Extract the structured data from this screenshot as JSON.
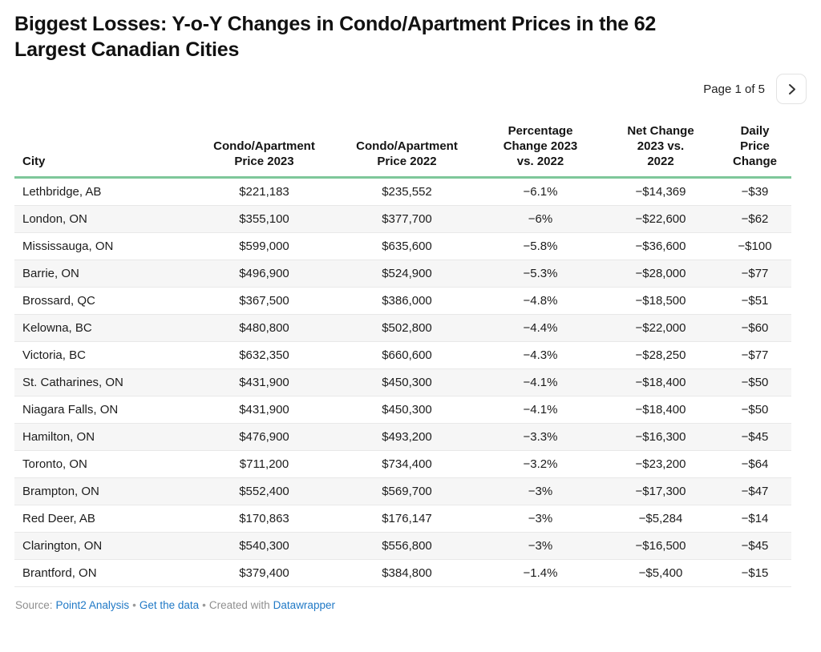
{
  "title": "Biggest Losses: Y-o-Y Changes in Condo/Apartment Prices in the 62\nLargest Canadian Cities",
  "pagination": {
    "label": "Page 1 of 5",
    "next_icon": "chevron-right"
  },
  "table": {
    "headers": [
      {
        "label": "City"
      },
      {
        "label": "Condo/Apartment\nPrice 2023"
      },
      {
        "label": "Condo/Apartment\nPrice 2022"
      },
      {
        "label": "Percentage\nChange 2023\nvs. 2022"
      },
      {
        "label": "Net Change\n2023 vs.\n2022"
      },
      {
        "label": "Daily\nPrice\nChange"
      }
    ],
    "rows": [
      [
        "Lethbridge, AB",
        "$221,183",
        "$235,552",
        "−6.1%",
        "−$14,369",
        "−$39"
      ],
      [
        "London, ON",
        "$355,100",
        "$377,700",
        "−6%",
        "−$22,600",
        "−$62"
      ],
      [
        "Mississauga, ON",
        "$599,000",
        "$635,600",
        "−5.8%",
        "−$36,600",
        "−$100"
      ],
      [
        "Barrie, ON",
        "$496,900",
        "$524,900",
        "−5.3%",
        "−$28,000",
        "−$77"
      ],
      [
        "Brossard, QC",
        "$367,500",
        "$386,000",
        "−4.8%",
        "−$18,500",
        "−$51"
      ],
      [
        "Kelowna, BC",
        "$480,800",
        "$502,800",
        "−4.4%",
        "−$22,000",
        "−$60"
      ],
      [
        "Victoria, BC",
        "$632,350",
        "$660,600",
        "−4.3%",
        "−$28,250",
        "−$77"
      ],
      [
        "St. Catharines, ON",
        "$431,900",
        "$450,300",
        "−4.1%",
        "−$18,400",
        "−$50"
      ],
      [
        "Niagara Falls, ON",
        "$431,900",
        "$450,300",
        "−4.1%",
        "−$18,400",
        "−$50"
      ],
      [
        "Hamilton, ON",
        "$476,900",
        "$493,200",
        "−3.3%",
        "−$16,300",
        "−$45"
      ],
      [
        "Toronto, ON",
        "$711,200",
        "$734,400",
        "−3.2%",
        "−$23,200",
        "−$64"
      ],
      [
        "Brampton, ON",
        "$552,400",
        "$569,700",
        "−3%",
        "−$17,300",
        "−$47"
      ],
      [
        "Red Deer, AB",
        "$170,863",
        "$176,147",
        "−3%",
        "−$5,284",
        "−$14"
      ],
      [
        "Clarington, ON",
        "$540,300",
        "$556,800",
        "−3%",
        "−$16,500",
        "−$45"
      ],
      [
        "Brantford, ON",
        "$379,400",
        "$384,800",
        "−1.4%",
        "−$5,400",
        "−$15"
      ]
    ]
  },
  "footer": {
    "source_prefix": "Source:",
    "source_link": "Point2 Analysis",
    "separator": "•",
    "data_link": "Get the data",
    "created_prefix": "Created with",
    "creator_link": "Datawrapper"
  },
  "colors": {
    "header_rule_green": "#7ec79a",
    "link_blue": "#2079c6",
    "zebra_gray": "#f6f6f6"
  },
  "chart_data": {
    "type": "table",
    "title": "Biggest Losses: Y-o-Y Changes in Condo/Apartment Prices in the 62 Largest Canadian Cities",
    "columns": [
      "City",
      "Condo/Apartment Price 2023",
      "Condo/Apartment Price 2022",
      "Percentage Change 2023 vs. 2022",
      "Net Change 2023 vs. 2022",
      "Daily Price Change"
    ],
    "rows": [
      [
        "Lethbridge, AB",
        221183,
        235552,
        -6.1,
        -14369,
        -39
      ],
      [
        "London, ON",
        355100,
        377700,
        -6,
        -22600,
        -62
      ],
      [
        "Mississauga, ON",
        599000,
        635600,
        -5.8,
        -36600,
        -100
      ],
      [
        "Barrie, ON",
        496900,
        524900,
        -5.3,
        -28000,
        -77
      ],
      [
        "Brossard, QC",
        367500,
        386000,
        -4.8,
        -18500,
        -51
      ],
      [
        "Kelowna, BC",
        480800,
        502800,
        -4.4,
        -22000,
        -60
      ],
      [
        "Victoria, BC",
        632350,
        660600,
        -4.3,
        -28250,
        -77
      ],
      [
        "St. Catharines, ON",
        431900,
        450300,
        -4.1,
        -18400,
        -50
      ],
      [
        "Niagara Falls, ON",
        431900,
        450300,
        -4.1,
        -18400,
        -50
      ],
      [
        "Hamilton, ON",
        476900,
        493200,
        -3.3,
        -16300,
        -45
      ],
      [
        "Toronto, ON",
        711200,
        734400,
        -3.2,
        -23200,
        -64
      ],
      [
        "Brampton, ON",
        552400,
        569700,
        -3,
        -17300,
        -47
      ],
      [
        "Red Deer, AB",
        170863,
        176147,
        -3,
        -5284,
        -14
      ],
      [
        "Clarington, ON",
        540300,
        556800,
        -3,
        -16500,
        -45
      ],
      [
        "Brantford, ON",
        379400,
        384800,
        -1.4,
        -5400,
        -15
      ]
    ],
    "pagination": "Page 1 of 5",
    "layout_hints": {
      "numeric_alignment": "center",
      "zebra_striping": true,
      "header_rule_color": "#7ec79a"
    }
  }
}
